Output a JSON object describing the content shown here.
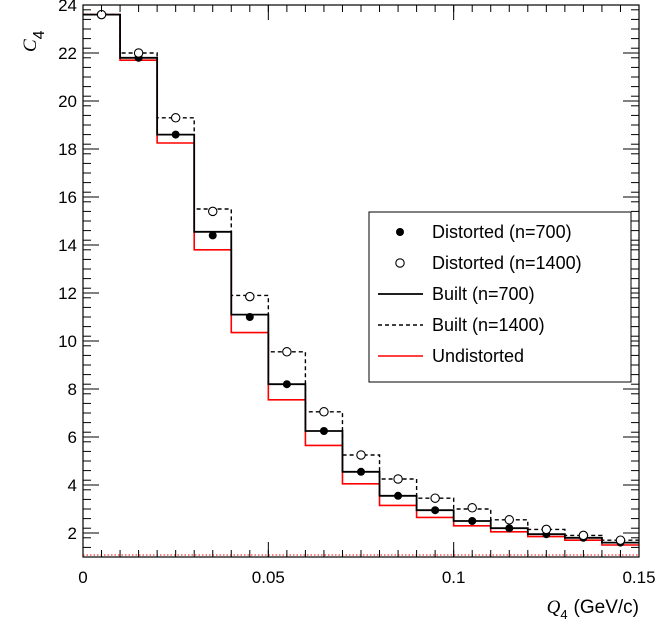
{
  "chart_data": {
    "type": "line",
    "title": "",
    "x_label": {
      "var": "Q",
      "sub": "4",
      "unit": "(GeV/c)"
    },
    "y_label": {
      "var": "C",
      "sub": "4"
    },
    "xlim": [
      0,
      0.15
    ],
    "ylim": [
      1.0,
      24.0
    ],
    "x_ticks": [
      {
        "value": 0,
        "label": "0"
      },
      {
        "value": 0.05,
        "label": "0.05"
      },
      {
        "value": 0.1,
        "label": "0.1"
      },
      {
        "value": 0.15,
        "label": "0.15"
      }
    ],
    "y_ticks": [
      {
        "value": 2,
        "label": "2"
      },
      {
        "value": 4,
        "label": "4"
      },
      {
        "value": 6,
        "label": "6"
      },
      {
        "value": 8,
        "label": "8"
      },
      {
        "value": 10,
        "label": "10"
      },
      {
        "value": 12,
        "label": "12"
      },
      {
        "value": 14,
        "label": "14"
      },
      {
        "value": 16,
        "label": "16"
      },
      {
        "value": 18,
        "label": "18"
      },
      {
        "value": 20,
        "label": "20"
      },
      {
        "value": 22,
        "label": "22"
      },
      {
        "value": 24,
        "label": "24"
      }
    ],
    "bin_edges": [
      0,
      0.01,
      0.02,
      0.03,
      0.04,
      0.05,
      0.06,
      0.07,
      0.08,
      0.09,
      0.1,
      0.11,
      0.12,
      0.13,
      0.14,
      0.15
    ],
    "bin_centers": [
      0.005,
      0.015,
      0.025,
      0.035,
      0.045,
      0.055,
      0.065,
      0.075,
      0.085,
      0.095,
      0.105,
      0.115,
      0.125,
      0.135,
      0.145
    ],
    "series": [
      {
        "name": "Distorted (n=700)",
        "kind": "points-filled",
        "color": "#000000",
        "values": [
          23.6,
          21.8,
          18.6,
          14.4,
          11.0,
          8.2,
          6.25,
          4.55,
          3.55,
          2.95,
          2.5,
          2.2,
          1.95,
          1.8,
          1.6
        ]
      },
      {
        "name": "Distorted (n=1400)",
        "kind": "points-open",
        "color": "#000000",
        "values": [
          23.6,
          22.0,
          19.3,
          15.4,
          11.85,
          9.55,
          7.05,
          5.25,
          4.25,
          3.45,
          3.05,
          2.55,
          2.15,
          1.9,
          1.7
        ]
      },
      {
        "name": "Built (n=700)",
        "kind": "hist-solid",
        "color": "#000000",
        "values": [
          23.6,
          21.8,
          18.6,
          14.55,
          11.1,
          8.2,
          6.25,
          4.55,
          3.55,
          2.95,
          2.5,
          2.2,
          1.95,
          1.8,
          1.6
        ]
      },
      {
        "name": "Built (n=1400)",
        "kind": "hist-dashed",
        "color": "#000000",
        "values": [
          23.6,
          22.0,
          19.3,
          15.5,
          11.9,
          9.55,
          7.05,
          5.25,
          4.25,
          3.45,
          3.0,
          2.55,
          2.15,
          1.9,
          1.7
        ]
      },
      {
        "name": "Undistorted",
        "kind": "hist-red",
        "color": "#ff0000",
        "values": [
          23.6,
          21.7,
          18.25,
          13.8,
          10.35,
          7.55,
          5.65,
          4.05,
          3.15,
          2.65,
          2.3,
          2.05,
          1.85,
          1.7,
          1.5
        ]
      }
    ],
    "reference_line": {
      "y": 1.0,
      "color": "#ff0000",
      "style": "dotted"
    },
    "legend": {
      "placement": "right",
      "style": "boxed"
    },
    "grid": false
  }
}
